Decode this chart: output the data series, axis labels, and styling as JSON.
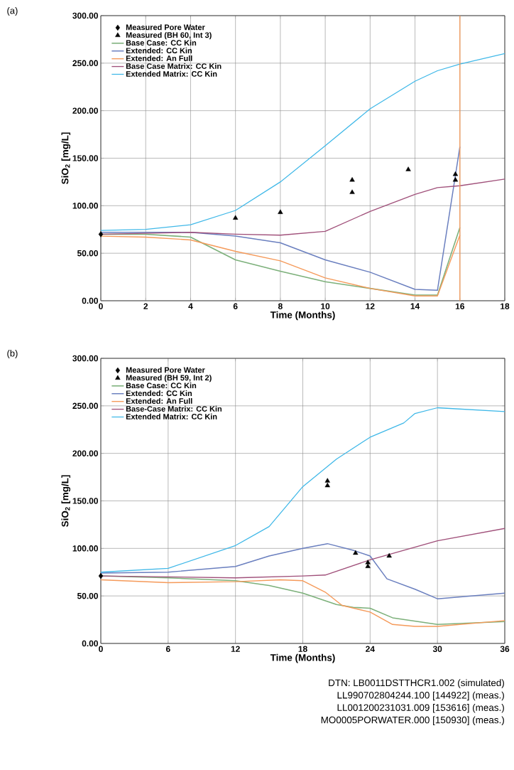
{
  "chart_data": [
    {
      "type": "line",
      "title": "(a)",
      "xlabel": "Time (Months)",
      "ylabel": "SiO$_{2}$ [mg/L]",
      "xlim": [
        0,
        18
      ],
      "xticks": [
        0,
        2,
        4,
        6,
        8,
        10,
        12,
        14,
        16,
        18
      ],
      "ylim": [
        0,
        300
      ],
      "yticks": [
        {
          "value": 0,
          "label": "0.00"
        },
        {
          "value": 50,
          "label": "50.00"
        },
        {
          "value": 100,
          "label": "100.00"
        },
        {
          "value": 150,
          "label": "150.00"
        },
        {
          "value": 200,
          "label": "200.00"
        },
        {
          "value": 250,
          "label": "250.00"
        },
        {
          "value": 300,
          "label": "300.00"
        }
      ],
      "grid": true,
      "legend": "top left",
      "ref_lines": [
        {
          "axis": "x",
          "value": 16,
          "color": "#f59a5a"
        }
      ],
      "series": [
        {
          "name": "Measured Pore Water",
          "type": "scatter",
          "marker": "diamond",
          "color": "#000000",
          "x": [
            0
          ],
          "values": [
            70
          ]
        },
        {
          "name": "Measured (BH 60, Int 3)",
          "type": "scatter",
          "marker": "triangle",
          "color": "#000000",
          "x": [
            6,
            8,
            11.2,
            11.2,
            13.7,
            15.8,
            15.8
          ],
          "values": [
            87,
            93,
            127,
            114,
            138,
            133,
            127
          ]
        },
        {
          "name": "Base Case: CC Kin",
          "color": "#7cb07a",
          "x": [
            0,
            2,
            4,
            6,
            8,
            10,
            12,
            14,
            15,
            16
          ],
          "values": [
            70,
            70,
            67,
            43,
            31,
            20,
            13,
            6,
            6,
            77
          ]
        },
        {
          "name": "Extended: CC Kin",
          "color": "#6a7fbf",
          "x": [
            0,
            2,
            4,
            6,
            8,
            10,
            12,
            14,
            15,
            16
          ],
          "values": [
            72,
            72,
            72,
            68,
            61,
            43,
            30,
            12,
            11,
            162
          ]
        },
        {
          "name": "Extended: An Full",
          "color": "#f59a5a",
          "x": [
            0,
            2,
            4,
            6,
            8,
            10,
            12,
            14,
            15,
            16
          ],
          "values": [
            68,
            67,
            64,
            52,
            42,
            24,
            13,
            5,
            5,
            69
          ]
        },
        {
          "name": "Base Case Matrix: CC Kin",
          "color": "#a0507a",
          "x": [
            0,
            2,
            4,
            6,
            8,
            10,
            12,
            14,
            15,
            16,
            18
          ],
          "values": [
            70,
            71,
            72,
            70,
            69,
            73,
            94,
            112,
            119,
            121,
            128
          ]
        },
        {
          "name": "Extended Matrix: CC Kin",
          "color": "#3fb8e8",
          "x": [
            0,
            2,
            4,
            6,
            8,
            10,
            12,
            14,
            15,
            16,
            18
          ],
          "values": [
            74,
            75,
            80,
            95,
            125,
            163,
            202,
            231,
            242,
            249,
            260
          ]
        }
      ]
    },
    {
      "type": "line",
      "title": "(b)",
      "xlabel": "Time (Months)",
      "ylabel": "SiO$_{2}$ [mg/L]",
      "xlim": [
        0,
        36
      ],
      "xticks": [
        0,
        6,
        12,
        18,
        24,
        30,
        36
      ],
      "ylim": [
        0,
        300
      ],
      "yticks": [
        {
          "value": 0,
          "label": "0.00"
        },
        {
          "value": 50,
          "label": "50.00"
        },
        {
          "value": 100,
          "label": "100.00"
        },
        {
          "value": 150,
          "label": "150.00"
        },
        {
          "value": 200,
          "label": "200.00"
        },
        {
          "value": 250,
          "label": "250.00"
        },
        {
          "value": 300,
          "label": "300.00"
        }
      ],
      "grid": true,
      "legend": "top left",
      "annotations": [
        "DTN: LB0011DSTTHCR1.002 (simulated)",
        "LL990702804244.100 [144922] (meas.)",
        "LL001200231031.009 [153616] (meas.)",
        "MO0005PORWATER.000 [150930] (meas.)"
      ],
      "series": [
        {
          "name": "Measured Pore Water",
          "type": "scatter",
          "marker": "diamond",
          "color": "#000000",
          "x": [
            0
          ],
          "values": [
            71
          ]
        },
        {
          "name": "Measured (BH 59, Int 2)",
          "type": "scatter",
          "marker": "triangle",
          "color": "#000000",
          "x": [
            20.2,
            20.2,
            22.7,
            23.8,
            23.8,
            25.7
          ],
          "values": [
            171,
            166,
            95,
            85,
            81,
            92
          ]
        },
        {
          "name": "Base Case: CC Kin",
          "color": "#7cb07a",
          "x": [
            0,
            6,
            12,
            15,
            18,
            21,
            22.5,
            24,
            26,
            30,
            36
          ],
          "values": [
            71,
            69,
            66,
            61,
            53,
            41,
            38,
            37,
            27,
            20,
            23
          ]
        },
        {
          "name": "Extended: CC Kin",
          "color": "#6a7fbf",
          "x": [
            0,
            6,
            12,
            15,
            18,
            20.2,
            22.5,
            24,
            25.5,
            28,
            30,
            36
          ],
          "values": [
            74,
            75,
            81,
            92,
            100,
            105,
            98,
            92,
            68,
            57,
            47,
            53
          ]
        },
        {
          "name": "Extended: An Full",
          "color": "#f59a5a",
          "x": [
            0,
            6,
            12,
            16,
            18,
            20,
            21.5,
            24,
            26,
            28,
            30,
            36
          ],
          "values": [
            67,
            64,
            65,
            67,
            66,
            54,
            40,
            33,
            20,
            18,
            18,
            24
          ]
        },
        {
          "name": "Base-Case Matrix: CC Kin",
          "color": "#a0507a",
          "x": [
            0,
            12,
            18,
            20,
            24,
            30,
            36
          ],
          "values": [
            71,
            69,
            71,
            72,
            88,
            108,
            121
          ]
        },
        {
          "name": "Extended Matrix: CC Kin",
          "color": "#3fb8e8",
          "x": [
            0,
            6,
            9,
            12,
            15,
            18,
            21,
            24,
            27,
            28,
            30,
            36
          ],
          "values": [
            75,
            79,
            91,
            103,
            123,
            165,
            194,
            217,
            232,
            242,
            248,
            244
          ]
        }
      ]
    }
  ]
}
